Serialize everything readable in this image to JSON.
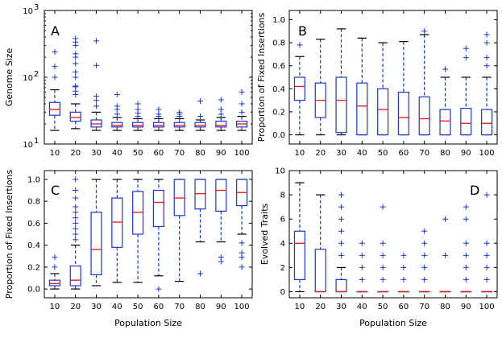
{
  "colors": {
    "box": "#1a36d4",
    "median": "#e8231c",
    "axis": "#000000"
  },
  "chart_data": [
    {
      "type": "boxplot",
      "panel": "A",
      "ylabel": "Genome Size",
      "xlabel": "",
      "yscale": "log",
      "ylim": [
        10,
        1000
      ],
      "yticks": [
        10,
        100,
        1000
      ],
      "ytick_labels": [
        {
          "base": "10",
          "exp": "1"
        },
        {
          "base": "10",
          "exp": "2"
        },
        {
          "base": "10",
          "exp": "3"
        }
      ],
      "categories": [
        "10",
        "20",
        "30",
        "40",
        "50",
        "60",
        "70",
        "80",
        "90",
        "100"
      ],
      "boxes": [
        {
          "wlo": 16,
          "q1": 27,
          "med": 33,
          "q3": 42,
          "whi": 65,
          "fliers": [
            100,
            145,
            240
          ]
        },
        {
          "wlo": 17,
          "q1": 22,
          "med": 25,
          "q3": 30,
          "whi": 40,
          "fliers": [
            55,
            62,
            72,
            74,
            100,
            120,
            160,
            200,
            225,
            300,
            335,
            380
          ]
        },
        {
          "wlo": 16,
          "q1": 18,
          "med": 20,
          "q3": 23,
          "whi": 30,
          "fliers": [
            37,
            45,
            52,
            150,
            350
          ]
        },
        {
          "wlo": 16,
          "q1": 18,
          "med": 19,
          "q3": 21,
          "whi": 25,
          "fliers": [
            28,
            33,
            37,
            55
          ]
        },
        {
          "wlo": 16,
          "q1": 18,
          "med": 19,
          "q3": 21,
          "whi": 24,
          "fliers": [
            26,
            29,
            33,
            40
          ]
        },
        {
          "wlo": 16,
          "q1": 18,
          "med": 19,
          "q3": 21,
          "whi": 24,
          "fliers": [
            26,
            28,
            33
          ]
        },
        {
          "wlo": 16,
          "q1": 18,
          "med": 19,
          "q3": 21,
          "whi": 24,
          "fliers": [
            26,
            28,
            30
          ]
        },
        {
          "wlo": 16,
          "q1": 18,
          "med": 19,
          "q3": 21,
          "whi": 23,
          "fliers": [
            26,
            44
          ]
        },
        {
          "wlo": 16,
          "q1": 18,
          "med": 19,
          "q3": 22,
          "whi": 25,
          "fliers": [
            28,
            33,
            46
          ]
        },
        {
          "wlo": 16,
          "q1": 18,
          "med": 20,
          "q3": 22,
          "whi": 26,
          "fliers": [
            30,
            40,
            60
          ]
        }
      ]
    },
    {
      "type": "boxplot",
      "panel": "B",
      "ylabel": "Proportion of Fixed Insertions",
      "xlabel": "",
      "yscale": "linear",
      "ylim": [
        -0.08,
        1.08
      ],
      "yticks": [
        0.0,
        0.2,
        0.4,
        0.6,
        0.8,
        1.0
      ],
      "ytick_labels": [
        "0.0",
        "0.2",
        "0.4",
        "0.6",
        "0.8",
        "1.0"
      ],
      "categories": [
        "10",
        "20",
        "30",
        "40",
        "50",
        "60",
        "70",
        "80",
        "90",
        "100"
      ],
      "boxes": [
        {
          "wlo": 0.0,
          "q1": 0.3,
          "med": 0.42,
          "q3": 0.5,
          "whi": 0.68,
          "fliers": [
            0.78
          ]
        },
        {
          "wlo": 0.0,
          "q1": 0.15,
          "med": 0.3,
          "q3": 0.45,
          "whi": 0.83,
          "fliers": []
        },
        {
          "wlo": 0.0,
          "q1": 0.02,
          "med": 0.3,
          "q3": 0.5,
          "whi": 0.92,
          "fliers": []
        },
        {
          "wlo": 0.0,
          "q1": 0.0,
          "med": 0.25,
          "q3": 0.45,
          "whi": 0.84,
          "fliers": []
        },
        {
          "wlo": 0.0,
          "q1": 0.0,
          "med": 0.22,
          "q3": 0.4,
          "whi": 0.8,
          "fliers": []
        },
        {
          "wlo": 0.0,
          "q1": 0.0,
          "med": 0.15,
          "q3": 0.37,
          "whi": 0.81,
          "fliers": []
        },
        {
          "wlo": 0.0,
          "q1": 0.0,
          "med": 0.14,
          "q3": 0.33,
          "whi": 0.87,
          "fliers": [
            0.9
          ]
        },
        {
          "wlo": 0.0,
          "q1": 0.0,
          "med": 0.12,
          "q3": 0.22,
          "whi": 0.5,
          "fliers": [
            0.57
          ]
        },
        {
          "wlo": 0.0,
          "q1": 0.0,
          "med": 0.1,
          "q3": 0.23,
          "whi": 0.5,
          "fliers": [
            0.67,
            0.75
          ]
        },
        {
          "wlo": 0.0,
          "q1": 0.0,
          "med": 0.1,
          "q3": 0.22,
          "whi": 0.5,
          "fliers": [
            0.6,
            0.67,
            0.8,
            0.87
          ]
        }
      ]
    },
    {
      "type": "boxplot",
      "panel": "C",
      "ylabel": "Proportion of Fixed Insertions",
      "xlabel": "Population Size",
      "yscale": "linear",
      "ylim": [
        -0.08,
        1.08
      ],
      "yticks": [
        0.0,
        0.2,
        0.4,
        0.6,
        0.8,
        1.0
      ],
      "ytick_labels": [
        "0.0",
        "0.2",
        "0.4",
        "0.6",
        "0.8",
        "1.0"
      ],
      "categories": [
        "10",
        "20",
        "30",
        "40",
        "50",
        "60",
        "70",
        "80",
        "90",
        "100"
      ],
      "boxes": [
        {
          "wlo": 0.0,
          "q1": 0.03,
          "med": 0.05,
          "q3": 0.08,
          "whi": 0.14,
          "fliers": [
            0.2,
            0.29
          ]
        },
        {
          "wlo": 0.0,
          "q1": 0.03,
          "med": 0.08,
          "q3": 0.21,
          "whi": 0.4,
          "fliers": [
            0.45,
            0.5,
            0.55,
            0.6,
            0.65,
            0.7,
            0.75,
            0.83,
            0.9,
            1.0
          ]
        },
        {
          "wlo": 0.03,
          "q1": 0.13,
          "med": 0.36,
          "q3": 0.7,
          "whi": 1.0,
          "fliers": []
        },
        {
          "wlo": 0.06,
          "q1": 0.38,
          "med": 0.61,
          "q3": 0.83,
          "whi": 1.0,
          "fliers": []
        },
        {
          "wlo": 0.06,
          "q1": 0.5,
          "med": 0.7,
          "q3": 0.89,
          "whi": 1.0,
          "fliers": []
        },
        {
          "wlo": 0.12,
          "q1": 0.57,
          "med": 0.79,
          "q3": 0.9,
          "whi": 1.0,
          "fliers": [
            0.0
          ]
        },
        {
          "wlo": 0.07,
          "q1": 0.67,
          "med": 0.83,
          "q3": 1.0,
          "whi": 1.0,
          "fliers": []
        },
        {
          "wlo": 0.43,
          "q1": 0.73,
          "med": 0.87,
          "q3": 1.0,
          "whi": 1.0,
          "fliers": [
            0.14
          ]
        },
        {
          "wlo": 0.43,
          "q1": 0.71,
          "med": 0.9,
          "q3": 1.0,
          "whi": 1.0,
          "fliers": [
            0.25,
            0.29
          ]
        },
        {
          "wlo": 0.5,
          "q1": 0.76,
          "med": 0.88,
          "q3": 1.0,
          "whi": 1.0,
          "fliers": [
            0.2,
            0.29,
            0.33,
            0.42
          ]
        }
      ]
    },
    {
      "type": "boxplot",
      "panel": "D",
      "ylabel": "Evolved Traits",
      "xlabel": "Population Size",
      "yscale": "linear",
      "ylim": [
        -0.5,
        10
      ],
      "yticks": [
        0,
        2,
        4,
        6,
        8,
        10
      ],
      "ytick_labels": [
        "0",
        "2",
        "4",
        "6",
        "8",
        "10"
      ],
      "categories": [
        "10",
        "20",
        "30",
        "40",
        "50",
        "60",
        "70",
        "80",
        "90",
        "100"
      ],
      "boxes": [
        {
          "wlo": 0,
          "q1": 1,
          "med": 4,
          "q3": 5,
          "whi": 9,
          "fliers": []
        },
        {
          "wlo": 0,
          "q1": 0,
          "med": 0,
          "q3": 3.5,
          "whi": 8,
          "fliers": []
        },
        {
          "wlo": 0,
          "q1": 0,
          "med": 0,
          "q3": 1,
          "whi": 2,
          "fliers": [
            3,
            4,
            5,
            6,
            7,
            8
          ]
        },
        {
          "wlo": 0,
          "q1": 0,
          "med": 0,
          "q3": 0,
          "whi": 0,
          "fliers": [
            1,
            2,
            3,
            4
          ]
        },
        {
          "wlo": 0,
          "q1": 0,
          "med": 0,
          "q3": 0,
          "whi": 0,
          "fliers": [
            1,
            2,
            3,
            4,
            7
          ]
        },
        {
          "wlo": 0,
          "q1": 0,
          "med": 0,
          "q3": 0,
          "whi": 0,
          "fliers": [
            1,
            2,
            3
          ]
        },
        {
          "wlo": 0,
          "q1": 0,
          "med": 0,
          "q3": 0,
          "whi": 0,
          "fliers": [
            1,
            2,
            3,
            4,
            5
          ]
        },
        {
          "wlo": 0,
          "q1": 0,
          "med": 0,
          "q3": 0,
          "whi": 0,
          "fliers": [
            3,
            6
          ]
        },
        {
          "wlo": 0,
          "q1": 0,
          "med": 0,
          "q3": 0,
          "whi": 0,
          "fliers": [
            1,
            2,
            3,
            4,
            6,
            7
          ]
        },
        {
          "wlo": 0,
          "q1": 0,
          "med": 0,
          "q3": 0,
          "whi": 0,
          "fliers": [
            1,
            2,
            3,
            4,
            8
          ]
        }
      ]
    }
  ]
}
